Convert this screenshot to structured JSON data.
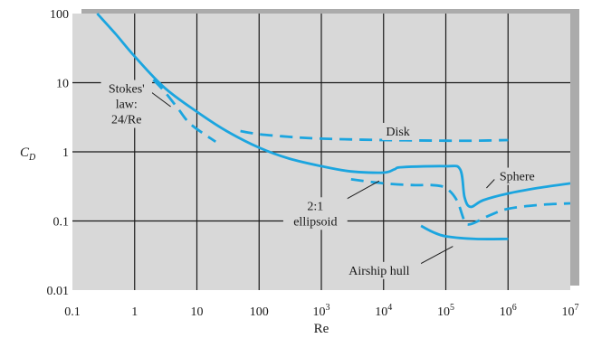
{
  "chart_data": {
    "type": "line",
    "xscale": "log",
    "yscale": "log",
    "xlim": [
      0.1,
      10000000
    ],
    "ylim": [
      0.01,
      100
    ],
    "grid": true,
    "xlabel": "Re",
    "ylabel_main": "C",
    "ylabel_sub": "D",
    "xticks": [
      {
        "value": 0.1,
        "label": "0.1"
      },
      {
        "value": 1,
        "label": "1"
      },
      {
        "value": 10,
        "label": "10"
      },
      {
        "value": 100,
        "label": "100"
      },
      {
        "value": 1000,
        "base": "10",
        "exp": "3"
      },
      {
        "value": 10000,
        "base": "10",
        "exp": "4"
      },
      {
        "value": 100000,
        "base": "10",
        "exp": "5"
      },
      {
        "value": 1000000,
        "base": "10",
        "exp": "6"
      },
      {
        "value": 10000000,
        "base": "10",
        "exp": "7"
      }
    ],
    "yticks": [
      {
        "value": 100,
        "label": "100"
      },
      {
        "value": 10,
        "label": "10"
      },
      {
        "value": 1,
        "label": "1"
      },
      {
        "value": 0.1,
        "label": "0.1"
      },
      {
        "value": 0.01,
        "label": "0.01"
      }
    ],
    "series": [
      {
        "key": "stokes",
        "dashed": true,
        "points": [
          [
            2,
            11
          ],
          [
            3,
            7.5
          ],
          [
            5,
            4.2
          ],
          [
            8,
            2.5
          ],
          [
            20,
            1.4
          ]
        ]
      },
      {
        "key": "sphere",
        "dashed": false,
        "points": [
          [
            0.25,
            100
          ],
          [
            0.5,
            50
          ],
          [
            1,
            24
          ],
          [
            3,
            8.5
          ],
          [
            10,
            3.8
          ],
          [
            30,
            2.0
          ],
          [
            100,
            1.15
          ],
          [
            300,
            0.8
          ],
          [
            1000,
            0.62
          ],
          [
            3000,
            0.52
          ],
          [
            10000,
            0.5
          ],
          [
            15000,
            0.56
          ],
          [
            20000,
            0.6
          ],
          [
            100000,
            0.62
          ],
          [
            170000,
            0.56
          ],
          [
            200000,
            0.22
          ],
          [
            250000,
            0.16
          ],
          [
            400000,
            0.2
          ],
          [
            1000000,
            0.25
          ],
          [
            3000000,
            0.3
          ],
          [
            10000000,
            0.35
          ]
        ]
      },
      {
        "key": "disk",
        "dashed": true,
        "points": [
          [
            50,
            2.0
          ],
          [
            100,
            1.8
          ],
          [
            300,
            1.65
          ],
          [
            1000,
            1.55
          ],
          [
            10000,
            1.48
          ],
          [
            100000,
            1.45
          ],
          [
            300000,
            1.45
          ],
          [
            1000000,
            1.48
          ]
        ]
      },
      {
        "key": "ellipsoid",
        "dashed": true,
        "points": [
          [
            3000,
            0.4
          ],
          [
            10000,
            0.35
          ],
          [
            30000,
            0.33
          ],
          [
            60000,
            0.33
          ],
          [
            100000,
            0.3
          ],
          [
            150000,
            0.2
          ],
          [
            200000,
            0.1
          ],
          [
            250000,
            0.09
          ],
          [
            500000,
            0.12
          ],
          [
            1000000,
            0.15
          ],
          [
            3000000,
            0.17
          ],
          [
            10000000,
            0.18
          ]
        ]
      },
      {
        "key": "airship",
        "dashed": false,
        "points": [
          [
            40000,
            0.085
          ],
          [
            60000,
            0.07
          ],
          [
            100000,
            0.06
          ],
          [
            300000,
            0.055
          ],
          [
            1000000,
            0.055
          ]
        ]
      }
    ],
    "annotations": [
      {
        "key": "stokes",
        "lines": [
          "Stokes'",
          "law:",
          "24/Re"
        ],
        "label_x": 0.74,
        "label_y": 5.0,
        "target_x": 3.8,
        "target_y": 4.5
      },
      {
        "key": "disk",
        "lines": [
          "Disk"
        ],
        "label_x": 17000,
        "label_y": 2.0
      },
      {
        "key": "sphere",
        "lines": [
          "Sphere"
        ],
        "label_x": 1400000,
        "label_y": 0.45,
        "target_x": 450000,
        "target_y": 0.3
      },
      {
        "key": "ellipsoid",
        "lines": [
          "2:1",
          "ellipsoid"
        ],
        "label_x": 800,
        "label_y": 0.13,
        "target_x": 8500,
        "target_y": 0.38
      },
      {
        "key": "airship",
        "lines": [
          "Airship hull"
        ],
        "label_x": 8500,
        "label_y": 0.0195,
        "target_x": 130000,
        "target_y": 0.043
      }
    ],
    "colors": {
      "plot_background": "#d8d8d8",
      "shadow": "#ababab",
      "grid": "#1a1a1a",
      "curve": "#1ba5df"
    }
  }
}
